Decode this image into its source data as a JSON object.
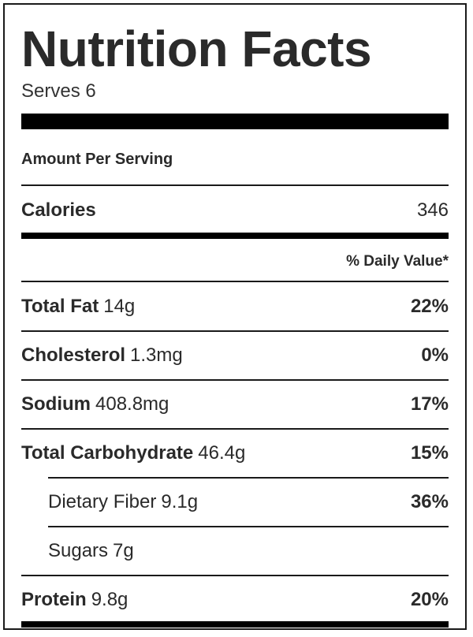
{
  "label": {
    "title": "Nutrition Facts",
    "serves": "Serves 6",
    "amount_per_serving": "Amount Per Serving",
    "calories": {
      "label": "Calories",
      "value": "346"
    },
    "daily_value_header": "% Daily Value*",
    "nutrients": [
      {
        "name": "Total Fat",
        "amount": "14g",
        "dv": "22%"
      },
      {
        "name": "Cholesterol",
        "amount": "1.3mg",
        "dv": "0%"
      },
      {
        "name": "Sodium",
        "amount": "408.8mg",
        "dv": "17%"
      },
      {
        "name": "Total Carbohydrate",
        "amount": "46.4g",
        "dv": "15%"
      },
      {
        "name": "Dietary Fiber",
        "amount": "9.1g",
        "dv": "36%"
      },
      {
        "name": "Sugars",
        "amount": "7g",
        "dv": ""
      },
      {
        "name": "Protein",
        "amount": "9.8g",
        "dv": "20%"
      }
    ]
  }
}
